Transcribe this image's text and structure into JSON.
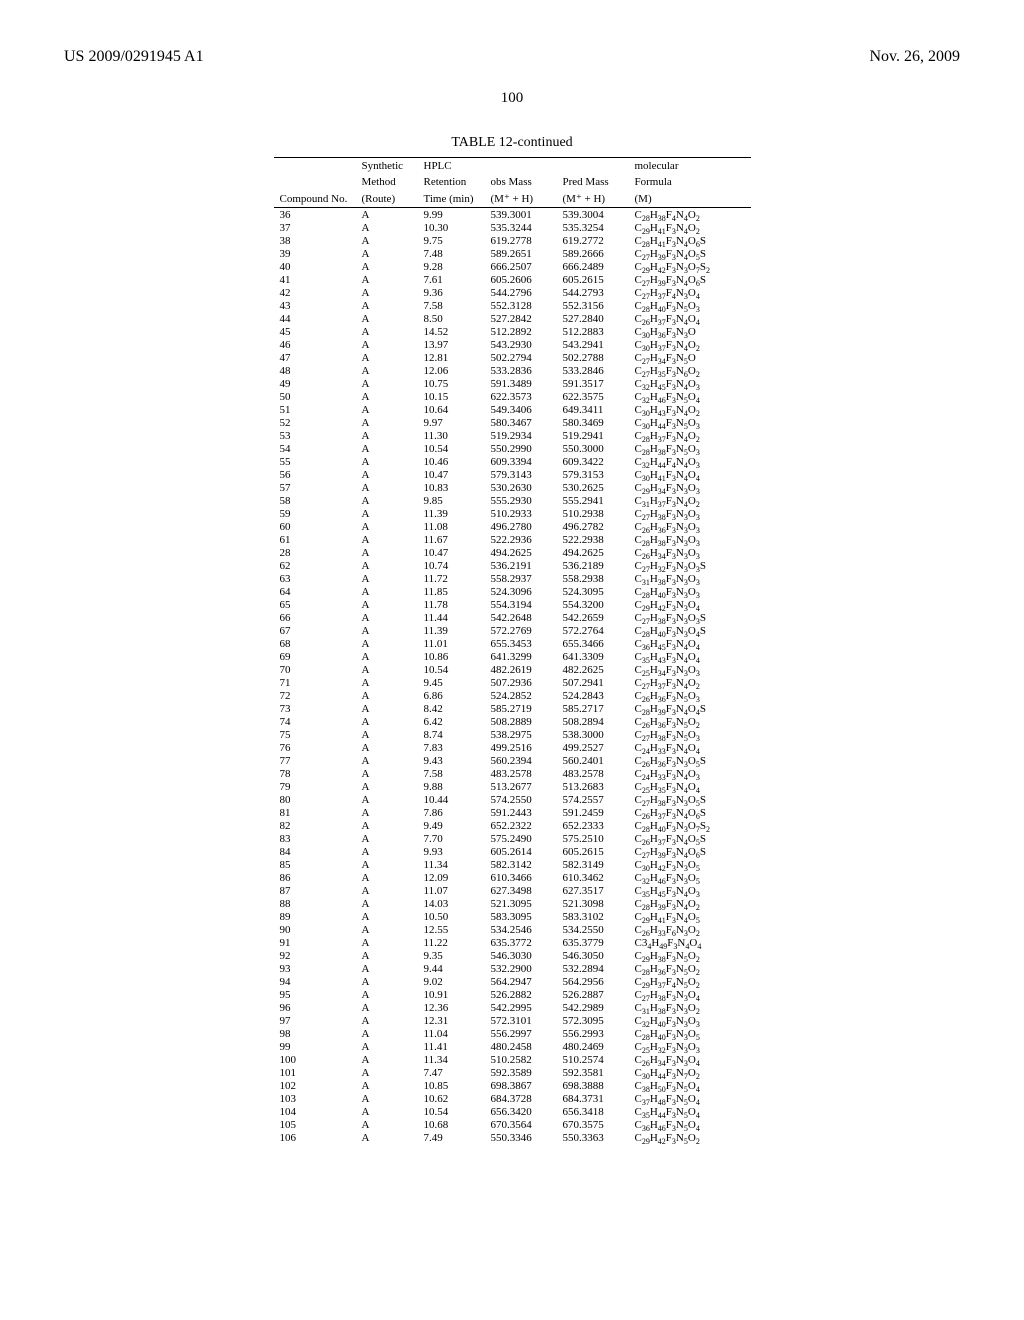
{
  "header": {
    "left": "US 2009/0291945 A1",
    "right": "Nov. 26, 2009"
  },
  "page_number": "100",
  "table": {
    "caption": "TABLE 12-continued",
    "columns": {
      "compound_no": "Compound No.",
      "method1": "Synthetic",
      "method2": "Method",
      "method3": "(Route)",
      "hplc1": "HPLC",
      "hplc2": "Retention",
      "hplc3": "Time (min)",
      "obs1": "obs Mass",
      "obs2": "(M⁺ + H)",
      "pred1": "Pred Mass",
      "pred2": "(M⁺ + H)",
      "molec1": "molecular",
      "formula1": "Formula",
      "formula2": "(M)"
    },
    "rows": [
      {
        "no": "36",
        "m": "A",
        "t": "9.99",
        "obs": "539.3001",
        "pred": "539.3004",
        "f": "C<sub>28</sub>H<sub>38</sub>F<sub>4</sub>N<sub>4</sub>O<sub>2</sub>"
      },
      {
        "no": "37",
        "m": "A",
        "t": "10.30",
        "obs": "535.3244",
        "pred": "535.3254",
        "f": "C<sub>29</sub>H<sub>41</sub>F<sub>3</sub>N<sub>4</sub>O<sub>2</sub>"
      },
      {
        "no": "38",
        "m": "A",
        "t": "9.75",
        "obs": "619.2778",
        "pred": "619.2772",
        "f": "C<sub>28</sub>H<sub>41</sub>F<sub>3</sub>N<sub>4</sub>O<sub>6</sub>S"
      },
      {
        "no": "39",
        "m": "A",
        "t": "7.48",
        "obs": "589.2651",
        "pred": "589.2666",
        "f": "C<sub>27</sub>H<sub>39</sub>F<sub>3</sub>N<sub>4</sub>O<sub>5</sub>S"
      },
      {
        "no": "40",
        "m": "A",
        "t": "9.28",
        "obs": "666.2507",
        "pred": "666.2489",
        "f": "C<sub>29</sub>H<sub>42</sub>F<sub>3</sub>N<sub>3</sub>O<sub>7</sub>S<sub>2</sub>"
      },
      {
        "no": "41",
        "m": "A",
        "t": "7.61",
        "obs": "605.2606",
        "pred": "605.2615",
        "f": "C<sub>27</sub>H<sub>39</sub>F<sub>3</sub>N<sub>4</sub>O<sub>6</sub>S"
      },
      {
        "no": "42",
        "m": "A",
        "t": "9.36",
        "obs": "544.2796",
        "pred": "544.2793",
        "f": "C<sub>27</sub>H<sub>37</sub>F<sub>4</sub>N<sub>3</sub>O<sub>4</sub>"
      },
      {
        "no": "43",
        "m": "A",
        "t": "7.58",
        "obs": "552.3128",
        "pred": "552.3156",
        "f": "C<sub>28</sub>H<sub>40</sub>F<sub>3</sub>N<sub>5</sub>O<sub>3</sub>"
      },
      {
        "no": "44",
        "m": "A",
        "t": "8.50",
        "obs": "527.2842",
        "pred": "527.2840",
        "f": "C<sub>26</sub>H<sub>37</sub>F<sub>3</sub>N<sub>4</sub>O<sub>4</sub>"
      },
      {
        "no": "45",
        "m": "A",
        "t": "14.52",
        "obs": "512.2892",
        "pred": "512.2883",
        "f": "C<sub>30</sub>H<sub>36</sub>F<sub>3</sub>N<sub>3</sub>O"
      },
      {
        "no": "46",
        "m": "A",
        "t": "13.97",
        "obs": "543.2930",
        "pred": "543.2941",
        "f": "C<sub>30</sub>H<sub>37</sub>F<sub>3</sub>N<sub>4</sub>O<sub>2</sub>"
      },
      {
        "no": "47",
        "m": "A",
        "t": "12.81",
        "obs": "502.2794",
        "pred": "502.2788",
        "f": "C<sub>27</sub>H<sub>34</sub>F<sub>3</sub>N<sub>5</sub>O"
      },
      {
        "no": "48",
        "m": "A",
        "t": "12.06",
        "obs": "533.2836",
        "pred": "533.2846",
        "f": "C<sub>27</sub>H<sub>35</sub>F<sub>3</sub>N<sub>6</sub>O<sub>2</sub>"
      },
      {
        "no": "49",
        "m": "A",
        "t": "10.75",
        "obs": "591.3489",
        "pred": "591.3517",
        "f": "C<sub>32</sub>H<sub>45</sub>F<sub>3</sub>N<sub>4</sub>O<sub>3</sub>"
      },
      {
        "no": "50",
        "m": "A",
        "t": "10.15",
        "obs": "622.3573",
        "pred": "622.3575",
        "f": "C<sub>32</sub>H<sub>46</sub>F<sub>3</sub>N<sub>5</sub>O<sub>4</sub>"
      },
      {
        "no": "51",
        "m": "A",
        "t": "10.64",
        "obs": "549.3406",
        "pred": "649.3411",
        "f": "C<sub>30</sub>H<sub>43</sub>F<sub>3</sub>N<sub>4</sub>O<sub>2</sub>"
      },
      {
        "no": "52",
        "m": "A",
        "t": "9.97",
        "obs": "580.3467",
        "pred": "580.3469",
        "f": "C<sub>30</sub>H<sub>44</sub>F<sub>3</sub>N<sub>5</sub>O<sub>3</sub>"
      },
      {
        "no": "53",
        "m": "A",
        "t": "11.30",
        "obs": "519.2934",
        "pred": "519.2941",
        "f": "C<sub>28</sub>H<sub>37</sub>F<sub>3</sub>N<sub>4</sub>O<sub>2</sub>"
      },
      {
        "no": "54",
        "m": "A",
        "t": "10.54",
        "obs": "550.2990",
        "pred": "550.3000",
        "f": "C<sub>28</sub>H<sub>38</sub>F<sub>3</sub>N<sub>5</sub>O<sub>3</sub>"
      },
      {
        "no": "55",
        "m": "A",
        "t": "10.46",
        "obs": "609.3394",
        "pred": "609.3422",
        "f": "C<sub>32</sub>H<sub>44</sub>F<sub>4</sub>N<sub>4</sub>O<sub>3</sub>"
      },
      {
        "no": "56",
        "m": "A",
        "t": "10.47",
        "obs": "579.3143",
        "pred": "579.3153",
        "f": "C<sub>30</sub>H<sub>41</sub>F<sub>3</sub>N<sub>4</sub>O<sub>4</sub>"
      },
      {
        "no": "57",
        "m": "A",
        "t": "10.83",
        "obs": "530.2630",
        "pred": "530.2625",
        "f": "C<sub>29</sub>H<sub>34</sub>F<sub>3</sub>N<sub>3</sub>O<sub>3</sub>"
      },
      {
        "no": "58",
        "m": "A",
        "t": "9.85",
        "obs": "555.2930",
        "pred": "555.2941",
        "f": "C<sub>31</sub>H<sub>37</sub>F<sub>3</sub>N<sub>4</sub>O<sub>2</sub>"
      },
      {
        "no": "59",
        "m": "A",
        "t": "11.39",
        "obs": "510.2933",
        "pred": "510.2938",
        "f": "C<sub>27</sub>H<sub>38</sub>F<sub>3</sub>N<sub>3</sub>O<sub>3</sub>"
      },
      {
        "no": "60",
        "m": "A",
        "t": "11.08",
        "obs": "496.2780",
        "pred": "496.2782",
        "f": "C<sub>26</sub>H<sub>36</sub>F<sub>3</sub>N<sub>3</sub>O<sub>3</sub>"
      },
      {
        "no": "61",
        "m": "A",
        "t": "11.67",
        "obs": "522.2936",
        "pred": "522.2938",
        "f": "C<sub>28</sub>H<sub>38</sub>F<sub>3</sub>N<sub>3</sub>O<sub>3</sub>"
      },
      {
        "no": "28",
        "m": "A",
        "t": "10.47",
        "obs": "494.2625",
        "pred": "494.2625",
        "f": "C<sub>26</sub>H<sub>34</sub>F<sub>3</sub>N<sub>3</sub>O<sub>3</sub>"
      },
      {
        "no": "62",
        "m": "A",
        "t": "10.74",
        "obs": "536.2191",
        "pred": "536.2189",
        "f": "C<sub>27</sub>H<sub>32</sub>F<sub>3</sub>N<sub>3</sub>O<sub>3</sub>S"
      },
      {
        "no": "63",
        "m": "A",
        "t": "11.72",
        "obs": "558.2937",
        "pred": "558.2938",
        "f": "C<sub>31</sub>H<sub>38</sub>F<sub>3</sub>N<sub>3</sub>O<sub>3</sub>"
      },
      {
        "no": "64",
        "m": "A",
        "t": "11.85",
        "obs": "524.3096",
        "pred": "524.3095",
        "f": "C<sub>28</sub>H<sub>40</sub>F<sub>3</sub>N<sub>3</sub>O<sub>3</sub>"
      },
      {
        "no": "65",
        "m": "A",
        "t": "11.78",
        "obs": "554.3194",
        "pred": "554.3200",
        "f": "C<sub>29</sub>H<sub>42</sub>F<sub>3</sub>N<sub>3</sub>O<sub>4</sub>"
      },
      {
        "no": "66",
        "m": "A",
        "t": "11.44",
        "obs": "542.2648",
        "pred": "542.2659",
        "f": "C<sub>27</sub>H<sub>38</sub>F<sub>3</sub>N<sub>3</sub>O<sub>3</sub>S"
      },
      {
        "no": "67",
        "m": "A",
        "t": "11.39",
        "obs": "572.2769",
        "pred": "572.2764",
        "f": "C<sub>28</sub>H<sub>40</sub>F<sub>3</sub>N<sub>3</sub>O<sub>4</sub>S"
      },
      {
        "no": "68",
        "m": "A",
        "t": "11.01",
        "obs": "655.3453",
        "pred": "655.3466",
        "f": "C<sub>36</sub>H<sub>45</sub>F<sub>3</sub>N<sub>4</sub>O<sub>4</sub>"
      },
      {
        "no": "69",
        "m": "A",
        "t": "10.86",
        "obs": "641.3299",
        "pred": "641.3309",
        "f": "C<sub>35</sub>H<sub>43</sub>F<sub>3</sub>N<sub>4</sub>O<sub>4</sub>"
      },
      {
        "no": "70",
        "m": "A",
        "t": "10.54",
        "obs": "482.2619",
        "pred": "482.2625",
        "f": "C<sub>25</sub>H<sub>34</sub>F<sub>3</sub>N<sub>3</sub>O<sub>3</sub>"
      },
      {
        "no": "71",
        "m": "A",
        "t": "9.45",
        "obs": "507.2936",
        "pred": "507.2941",
        "f": "C<sub>27</sub>H<sub>37</sub>F<sub>3</sub>N<sub>4</sub>O<sub>2</sub>"
      },
      {
        "no": "72",
        "m": "A",
        "t": "6.86",
        "obs": "524.2852",
        "pred": "524.2843",
        "f": "C<sub>26</sub>H<sub>36</sub>F<sub>3</sub>N<sub>5</sub>O<sub>3</sub>"
      },
      {
        "no": "73",
        "m": "A",
        "t": "8.42",
        "obs": "585.2719",
        "pred": "585.2717",
        "f": "C<sub>28</sub>H<sub>39</sub>F<sub>3</sub>N<sub>4</sub>O<sub>4</sub>S"
      },
      {
        "no": "74",
        "m": "A",
        "t": "6.42",
        "obs": "508.2889",
        "pred": "508.2894",
        "f": "C<sub>26</sub>H<sub>36</sub>F<sub>3</sub>N<sub>5</sub>O<sub>2</sub>"
      },
      {
        "no": "75",
        "m": "A",
        "t": "8.74",
        "obs": "538.2975",
        "pred": "538.3000",
        "f": "C<sub>27</sub>H<sub>38</sub>F<sub>3</sub>N<sub>5</sub>O<sub>3</sub>"
      },
      {
        "no": "76",
        "m": "A",
        "t": "7.83",
        "obs": "499.2516",
        "pred": "499.2527",
        "f": "C<sub>24</sub>H<sub>33</sub>F<sub>3</sub>N<sub>4</sub>O<sub>4</sub>"
      },
      {
        "no": "77",
        "m": "A",
        "t": "9.43",
        "obs": "560.2394",
        "pred": "560.2401",
        "f": "C<sub>26</sub>H<sub>36</sub>F<sub>3</sub>N<sub>3</sub>O<sub>5</sub>S"
      },
      {
        "no": "78",
        "m": "A",
        "t": "7.58",
        "obs": "483.2578",
        "pred": "483.2578",
        "f": "C<sub>24</sub>H<sub>33</sub>F<sub>3</sub>N<sub>4</sub>O<sub>3</sub>"
      },
      {
        "no": "79",
        "m": "A",
        "t": "9.88",
        "obs": "513.2677",
        "pred": "513.2683",
        "f": "C<sub>25</sub>H<sub>35</sub>F<sub>3</sub>N<sub>4</sub>O<sub>4</sub>"
      },
      {
        "no": "80",
        "m": "A",
        "t": "10.44",
        "obs": "574.2550",
        "pred": "574.2557",
        "f": "C<sub>27</sub>H<sub>38</sub>F<sub>3</sub>N<sub>3</sub>O<sub>5</sub>S"
      },
      {
        "no": "81",
        "m": "A",
        "t": "7.86",
        "obs": "591.2443",
        "pred": "591.2459",
        "f": "C<sub>26</sub>H<sub>37</sub>F<sub>3</sub>N<sub>4</sub>O<sub>6</sub>S"
      },
      {
        "no": "82",
        "m": "A",
        "t": "9.49",
        "obs": "652.2322",
        "pred": "652.2333",
        "f": "C<sub>28</sub>H<sub>40</sub>F<sub>3</sub>N<sub>3</sub>O<sub>7</sub>S<sub>2</sub>"
      },
      {
        "no": "83",
        "m": "A",
        "t": "7.70",
        "obs": "575.2490",
        "pred": "575.2510",
        "f": "C<sub>26</sub>H<sub>37</sub>F<sub>3</sub>N<sub>4</sub>O<sub>5</sub>S"
      },
      {
        "no": "84",
        "m": "A",
        "t": "9.93",
        "obs": "605.2614",
        "pred": "605.2615",
        "f": "C<sub>27</sub>H<sub>39</sub>F<sub>3</sub>N<sub>4</sub>O<sub>6</sub>S"
      },
      {
        "no": "85",
        "m": "A",
        "t": "11.34",
        "obs": "582.3142",
        "pred": "582.3149",
        "f": "C<sub>30</sub>H<sub>42</sub>F<sub>3</sub>N<sub>3</sub>O<sub>5</sub>"
      },
      {
        "no": "86",
        "m": "A",
        "t": "12.09",
        "obs": "610.3466",
        "pred": "610.3462",
        "f": "C<sub>32</sub>H<sub>46</sub>F<sub>3</sub>N<sub>3</sub>O<sub>5</sub>"
      },
      {
        "no": "87",
        "m": "A",
        "t": "11.07",
        "obs": "627.3498",
        "pred": "627.3517",
        "f": "C<sub>35</sub>H<sub>45</sub>F<sub>3</sub>N<sub>4</sub>O<sub>3</sub>"
      },
      {
        "no": "88",
        "m": "A",
        "t": "14.03",
        "obs": "521.3095",
        "pred": "521.3098",
        "f": "C<sub>28</sub>H<sub>39</sub>F<sub>3</sub>N<sub>4</sub>O<sub>2</sub>"
      },
      {
        "no": "89",
        "m": "A",
        "t": "10.50",
        "obs": "583.3095",
        "pred": "583.3102",
        "f": "C<sub>29</sub>H<sub>41</sub>F<sub>3</sub>N<sub>4</sub>O<sub>5</sub>"
      },
      {
        "no": "90",
        "m": "A",
        "t": "12.55",
        "obs": "534.2546",
        "pred": "534.2550",
        "f": "C<sub>26</sub>H<sub>33</sub>F<sub>6</sub>N<sub>3</sub>O<sub>2</sub>"
      },
      {
        "no": "91",
        "m": "A",
        "t": "11.22",
        "obs": "635.3772",
        "pred": "635.3779",
        "f": "C3<sub>4</sub>H<sub>49</sub>F<sub>3</sub>N<sub>4</sub>O<sub>4</sub>"
      },
      {
        "no": "92",
        "m": "A",
        "t": "9.35",
        "obs": "546.3030",
        "pred": "546.3050",
        "f": "C<sub>29</sub>H<sub>38</sub>F<sub>3</sub>N<sub>5</sub>O<sub>2</sub>"
      },
      {
        "no": "93",
        "m": "A",
        "t": "9.44",
        "obs": "532.2900",
        "pred": "532.2894",
        "f": "C<sub>28</sub>H<sub>36</sub>F<sub>3</sub>N<sub>5</sub>O<sub>2</sub>"
      },
      {
        "no": "94",
        "m": "A",
        "t": "9.02",
        "obs": "564.2947",
        "pred": "564.2956",
        "f": "C<sub>29</sub>H<sub>37</sub>F<sub>4</sub>N<sub>5</sub>O<sub>2</sub>"
      },
      {
        "no": "95",
        "m": "A",
        "t": "10.91",
        "obs": "526.2882",
        "pred": "526.2887",
        "f": "C<sub>27</sub>H<sub>38</sub>F<sub>3</sub>N<sub>3</sub>O<sub>4</sub>"
      },
      {
        "no": "96",
        "m": "A",
        "t": "12.36",
        "obs": "542.2995",
        "pred": "542.2989",
        "f": "C<sub>31</sub>H<sub>38</sub>F<sub>3</sub>N<sub>3</sub>O<sub>2</sub>"
      },
      {
        "no": "97",
        "m": "A",
        "t": "12.31",
        "obs": "572.3101",
        "pred": "572.3095",
        "f": "C<sub>32</sub>H<sub>40</sub>F<sub>3</sub>N<sub>3</sub>O<sub>3</sub>"
      },
      {
        "no": "98",
        "m": "A",
        "t": "11.04",
        "obs": "556.2997",
        "pred": "556.2993",
        "f": "C<sub>28</sub>H<sub>40</sub>F<sub>3</sub>N<sub>3</sub>O<sub>5</sub>"
      },
      {
        "no": "99",
        "m": "A",
        "t": "11.41",
        "obs": "480.2458",
        "pred": "480.2469",
        "f": "C<sub>25</sub>H<sub>32</sub>F<sub>3</sub>N<sub>3</sub>O<sub>3</sub>"
      },
      {
        "no": "100",
        "m": "A",
        "t": "11.34",
        "obs": "510.2582",
        "pred": "510.2574",
        "f": "C<sub>26</sub>H<sub>34</sub>F<sub>3</sub>N<sub>3</sub>O<sub>4</sub>"
      },
      {
        "no": "101",
        "m": "A",
        "t": "7.47",
        "obs": "592.3589",
        "pred": "592.3581",
        "f": "C<sub>30</sub>H<sub>44</sub>F<sub>3</sub>N<sub>7</sub>O<sub>2</sub>"
      },
      {
        "no": "102",
        "m": "A",
        "t": "10.85",
        "obs": "698.3867",
        "pred": "698.3888",
        "f": "C<sub>38</sub>H<sub>50</sub>F<sub>3</sub>N<sub>5</sub>O<sub>4</sub>"
      },
      {
        "no": "103",
        "m": "A",
        "t": "10.62",
        "obs": "684.3728",
        "pred": "684.3731",
        "f": "C<sub>37</sub>H<sub>48</sub>F<sub>3</sub>N<sub>5</sub>O<sub>4</sub>"
      },
      {
        "no": "104",
        "m": "A",
        "t": "10.54",
        "obs": "656.3420",
        "pred": "656.3418",
        "f": "C<sub>35</sub>H<sub>44</sub>F<sub>3</sub>N<sub>5</sub>O<sub>4</sub>"
      },
      {
        "no": "105",
        "m": "A",
        "t": "10.68",
        "obs": "670.3564",
        "pred": "670.3575",
        "f": "C<sub>36</sub>H<sub>46</sub>F<sub>3</sub>N<sub>5</sub>O<sub>4</sub>"
      },
      {
        "no": "106",
        "m": "A",
        "t": "7.49",
        "obs": "550.3346",
        "pred": "550.3363",
        "f": "C<sub>29</sub>H<sub>42</sub>F<sub>3</sub>N<sub>5</sub>O<sub>2</sub>"
      }
    ]
  }
}
